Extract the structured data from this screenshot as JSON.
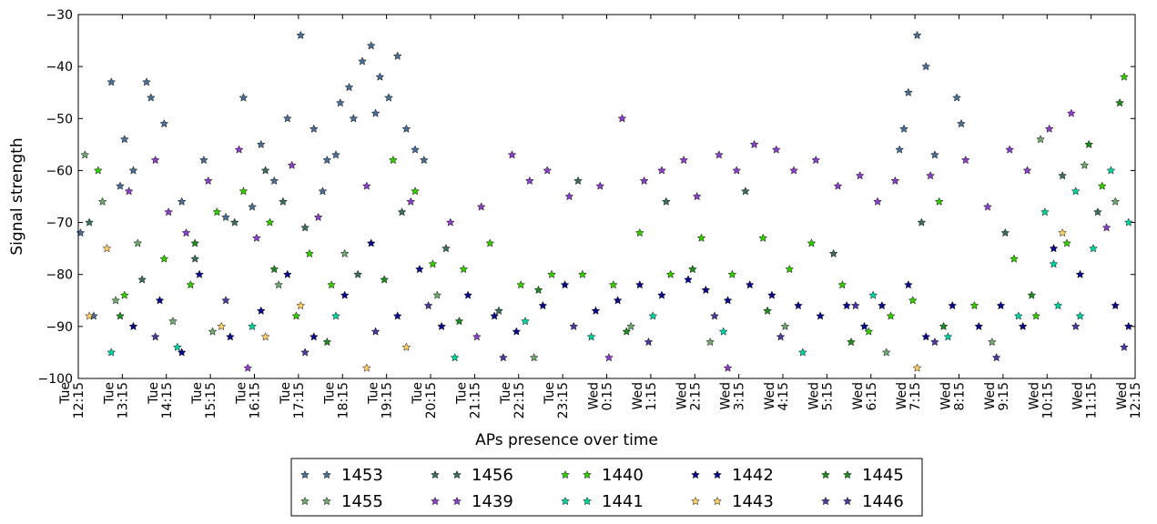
{
  "chart_data": {
    "type": "scatter",
    "xlabel": "APs presence over time",
    "ylabel": "Signal strength",
    "ylim": [
      -100,
      -30
    ],
    "yticks": [
      "−30",
      "−40",
      "−50",
      "−60",
      "−70",
      "−80",
      "−90",
      "−100"
    ],
    "ytick_values": [
      -30,
      -40,
      -50,
      -60,
      -70,
      -80,
      -90,
      -100
    ],
    "xlim": [
      12.25,
      36.25
    ],
    "xticks": [
      {
        "day": "Tue",
        "time": "12:15",
        "hour": 12.25
      },
      {
        "day": "Tue",
        "time": "13:15",
        "hour": 13.25
      },
      {
        "day": "Tue",
        "time": "14:15",
        "hour": 14.25
      },
      {
        "day": "Tue",
        "time": "15:15",
        "hour": 15.25
      },
      {
        "day": "Tue",
        "time": "16:15",
        "hour": 16.25
      },
      {
        "day": "Tue",
        "time": "17:15",
        "hour": 17.25
      },
      {
        "day": "Tue",
        "time": "18:15",
        "hour": 18.25
      },
      {
        "day": "Tue",
        "time": "19:15",
        "hour": 19.25
      },
      {
        "day": "Tue",
        "time": "20:15",
        "hour": 20.25
      },
      {
        "day": "Tue",
        "time": "21:15",
        "hour": 21.25
      },
      {
        "day": "Tue",
        "time": "22:15",
        "hour": 22.25
      },
      {
        "day": "Tue",
        "time": "23:15",
        "hour": 23.25
      },
      {
        "day": "Wed",
        "time": "0:15",
        "hour": 24.25
      },
      {
        "day": "Wed",
        "time": "1:15",
        "hour": 25.25
      },
      {
        "day": "Wed",
        "time": "2:15",
        "hour": 26.25
      },
      {
        "day": "Wed",
        "time": "3:15",
        "hour": 27.25
      },
      {
        "day": "Wed",
        "time": "4:15",
        "hour": 28.25
      },
      {
        "day": "Wed",
        "time": "5:15",
        "hour": 29.25
      },
      {
        "day": "Wed",
        "time": "6:15",
        "hour": 30.25
      },
      {
        "day": "Wed",
        "time": "7:15",
        "hour": 31.25
      },
      {
        "day": "Wed",
        "time": "8:15",
        "hour": 32.25
      },
      {
        "day": "Wed",
        "time": "9:15",
        "hour": 33.25
      },
      {
        "day": "Wed",
        "time": "10:15",
        "hour": 34.25
      },
      {
        "day": "Wed",
        "time": "11:15",
        "hour": 35.25
      },
      {
        "day": "Wed",
        "time": "12:15",
        "hour": 36.25
      }
    ],
    "marker": "star",
    "legend_position": "below",
    "series": [
      {
        "name": "1453",
        "color": "#4a6e96",
        "points": [
          [
            12.3,
            -72
          ],
          [
            12.6,
            -88
          ],
          [
            13.0,
            -43
          ],
          [
            13.3,
            -54
          ],
          [
            13.5,
            -60
          ],
          [
            13.9,
            -46
          ],
          [
            14.2,
            -51
          ],
          [
            14.6,
            -66
          ],
          [
            15.1,
            -58
          ],
          [
            15.6,
            -69
          ],
          [
            16.0,
            -46
          ],
          [
            16.4,
            -55
          ],
          [
            16.7,
            -62
          ],
          [
            17.0,
            -50
          ],
          [
            17.3,
            -34
          ],
          [
            17.6,
            -52
          ],
          [
            17.9,
            -58
          ],
          [
            18.2,
            -47
          ],
          [
            18.4,
            -44
          ],
          [
            18.7,
            -39
          ],
          [
            18.9,
            -36
          ],
          [
            19.1,
            -42
          ],
          [
            19.3,
            -46
          ],
          [
            19.5,
            -38
          ],
          [
            19.7,
            -52
          ],
          [
            19.9,
            -56
          ],
          [
            20.1,
            -58
          ],
          [
            16.2,
            -67
          ],
          [
            17.8,
            -64
          ],
          [
            18.5,
            -50
          ],
          [
            19.0,
            -49
          ],
          [
            31.1,
            -45
          ],
          [
            31.3,
            -34
          ],
          [
            31.5,
            -40
          ],
          [
            31.0,
            -52
          ],
          [
            30.9,
            -56
          ],
          [
            31.7,
            -57
          ],
          [
            32.2,
            -46
          ],
          [
            32.3,
            -51
          ],
          [
            13.8,
            -43
          ],
          [
            13.2,
            -63
          ],
          [
            18.1,
            -57
          ]
        ]
      },
      {
        "name": "1455",
        "color": "#6fa86f",
        "points": [
          [
            12.4,
            -57
          ],
          [
            12.8,
            -66
          ],
          [
            13.1,
            -85
          ],
          [
            13.6,
            -74
          ],
          [
            14.4,
            -89
          ],
          [
            15.3,
            -91
          ],
          [
            16.8,
            -82
          ],
          [
            18.3,
            -76
          ],
          [
            20.4,
            -84
          ],
          [
            22.6,
            -96
          ],
          [
            24.8,
            -90
          ],
          [
            26.6,
            -93
          ],
          [
            28.3,
            -90
          ],
          [
            30.6,
            -95
          ],
          [
            33.0,
            -93
          ],
          [
            34.1,
            -54
          ],
          [
            35.1,
            -59
          ],
          [
            35.8,
            -66
          ]
        ]
      },
      {
        "name": "1456",
        "color": "#3c6e5a",
        "points": [
          [
            12.5,
            -70
          ],
          [
            13.7,
            -81
          ],
          [
            14.9,
            -77
          ],
          [
            15.8,
            -70
          ],
          [
            16.5,
            -60
          ],
          [
            16.9,
            -66
          ],
          [
            17.4,
            -71
          ],
          [
            18.6,
            -80
          ],
          [
            19.6,
            -68
          ],
          [
            20.6,
            -75
          ],
          [
            21.8,
            -87
          ],
          [
            23.6,
            -62
          ],
          [
            25.6,
            -66
          ],
          [
            27.4,
            -64
          ],
          [
            29.4,
            -76
          ],
          [
            31.4,
            -70
          ],
          [
            33.3,
            -72
          ],
          [
            34.6,
            -61
          ],
          [
            35.4,
            -68
          ]
        ]
      },
      {
        "name": "1439",
        "color": "#8a3fc8",
        "points": [
          [
            13.4,
            -64
          ],
          [
            14.0,
            -58
          ],
          [
            14.3,
            -68
          ],
          [
            14.7,
            -72
          ],
          [
            15.2,
            -62
          ],
          [
            15.9,
            -56
          ],
          [
            16.3,
            -73
          ],
          [
            17.1,
            -59
          ],
          [
            17.7,
            -69
          ],
          [
            18.8,
            -63
          ],
          [
            19.8,
            -66
          ],
          [
            20.7,
            -70
          ],
          [
            21.4,
            -67
          ],
          [
            22.1,
            -57
          ],
          [
            22.5,
            -62
          ],
          [
            22.9,
            -60
          ],
          [
            23.4,
            -65
          ],
          [
            24.1,
            -63
          ],
          [
            24.6,
            -50
          ],
          [
            25.1,
            -62
          ],
          [
            25.5,
            -60
          ],
          [
            26.0,
            -58
          ],
          [
            26.3,
            -65
          ],
          [
            26.8,
            -57
          ],
          [
            27.2,
            -60
          ],
          [
            27.6,
            -55
          ],
          [
            28.1,
            -56
          ],
          [
            28.5,
            -60
          ],
          [
            29.0,
            -58
          ],
          [
            29.5,
            -63
          ],
          [
            30.0,
            -61
          ],
          [
            30.4,
            -66
          ],
          [
            30.8,
            -62
          ],
          [
            31.6,
            -61
          ],
          [
            32.4,
            -58
          ],
          [
            32.9,
            -67
          ],
          [
            33.4,
            -56
          ],
          [
            33.8,
            -60
          ],
          [
            34.3,
            -52
          ],
          [
            34.8,
            -49
          ],
          [
            35.6,
            -71
          ],
          [
            21.3,
            -92
          ],
          [
            24.3,
            -96
          ],
          [
            27.0,
            -98
          ],
          [
            16.1,
            -98
          ]
        ]
      },
      {
        "name": "1440",
        "color": "#33cc00",
        "points": [
          [
            12.7,
            -60
          ],
          [
            13.3,
            -84
          ],
          [
            14.2,
            -77
          ],
          [
            14.8,
            -82
          ],
          [
            15.4,
            -68
          ],
          [
            16.0,
            -64
          ],
          [
            16.6,
            -70
          ],
          [
            17.2,
            -88
          ],
          [
            17.5,
            -76
          ],
          [
            18.0,
            -82
          ],
          [
            19.4,
            -58
          ],
          [
            19.9,
            -64
          ],
          [
            20.3,
            -78
          ],
          [
            21.0,
            -79
          ],
          [
            21.6,
            -74
          ],
          [
            22.3,
            -82
          ],
          [
            23.0,
            -80
          ],
          [
            23.7,
            -80
          ],
          [
            24.4,
            -82
          ],
          [
            25.0,
            -72
          ],
          [
            25.7,
            -80
          ],
          [
            26.4,
            -73
          ],
          [
            27.1,
            -80
          ],
          [
            27.8,
            -73
          ],
          [
            28.4,
            -79
          ],
          [
            28.9,
            -74
          ],
          [
            29.6,
            -82
          ],
          [
            30.2,
            -91
          ],
          [
            30.7,
            -88
          ],
          [
            31.2,
            -85
          ],
          [
            31.8,
            -66
          ],
          [
            32.6,
            -86
          ],
          [
            33.5,
            -77
          ],
          [
            34.0,
            -88
          ],
          [
            34.7,
            -74
          ],
          [
            35.5,
            -63
          ],
          [
            36.0,
            -42
          ]
        ]
      },
      {
        "name": "1441",
        "color": "#00d2a0",
        "points": [
          [
            13.0,
            -95
          ],
          [
            14.5,
            -94
          ],
          [
            16.2,
            -90
          ],
          [
            18.1,
            -88
          ],
          [
            20.8,
            -96
          ],
          [
            22.4,
            -89
          ],
          [
            23.9,
            -92
          ],
          [
            25.3,
            -88
          ],
          [
            26.9,
            -91
          ],
          [
            28.7,
            -95
          ],
          [
            30.3,
            -84
          ],
          [
            32.0,
            -92
          ],
          [
            33.6,
            -88
          ],
          [
            34.2,
            -68
          ],
          [
            34.4,
            -78
          ],
          [
            34.9,
            -64
          ],
          [
            35.3,
            -75
          ],
          [
            35.7,
            -60
          ],
          [
            36.1,
            -70
          ],
          [
            34.5,
            -86
          ],
          [
            35.0,
            -88
          ]
        ]
      },
      {
        "name": "1442",
        "color": "#0a0a8c",
        "points": [
          [
            13.5,
            -90
          ],
          [
            14.1,
            -85
          ],
          [
            14.6,
            -95
          ],
          [
            15.0,
            -80
          ],
          [
            15.7,
            -92
          ],
          [
            16.4,
            -87
          ],
          [
            17.0,
            -80
          ],
          [
            17.6,
            -92
          ],
          [
            18.3,
            -84
          ],
          [
            18.9,
            -74
          ],
          [
            19.5,
            -88
          ],
          [
            20.0,
            -79
          ],
          [
            20.5,
            -90
          ],
          [
            21.1,
            -84
          ],
          [
            21.7,
            -88
          ],
          [
            22.2,
            -91
          ],
          [
            22.8,
            -86
          ],
          [
            23.3,
            -82
          ],
          [
            24.0,
            -87
          ],
          [
            24.5,
            -85
          ],
          [
            25.0,
            -82
          ],
          [
            25.5,
            -84
          ],
          [
            26.1,
            -81
          ],
          [
            26.5,
            -83
          ],
          [
            27.0,
            -85
          ],
          [
            27.5,
            -82
          ],
          [
            28.0,
            -84
          ],
          [
            28.6,
            -86
          ],
          [
            29.1,
            -88
          ],
          [
            29.7,
            -86
          ],
          [
            30.1,
            -90
          ],
          [
            30.5,
            -86
          ],
          [
            31.1,
            -82
          ],
          [
            31.5,
            -92
          ],
          [
            32.1,
            -86
          ],
          [
            32.7,
            -90
          ],
          [
            33.2,
            -86
          ],
          [
            33.7,
            -90
          ],
          [
            34.4,
            -75
          ],
          [
            35.0,
            -80
          ],
          [
            35.8,
            -86
          ],
          [
            36.1,
            -90
          ]
        ]
      },
      {
        "name": "1443",
        "color": "#ffcc66",
        "points": [
          [
            12.5,
            -88
          ],
          [
            15.5,
            -90
          ],
          [
            16.5,
            -92
          ],
          [
            17.3,
            -86
          ],
          [
            18.8,
            -98
          ],
          [
            19.7,
            -94
          ],
          [
            31.3,
            -98
          ],
          [
            34.6,
            -72
          ],
          [
            12.9,
            -75
          ]
        ]
      },
      {
        "name": "1445",
        "color": "#1e8c1e",
        "points": [
          [
            13.2,
            -88
          ],
          [
            14.9,
            -74
          ],
          [
            16.7,
            -79
          ],
          [
            17.9,
            -93
          ],
          [
            19.2,
            -81
          ],
          [
            20.9,
            -89
          ],
          [
            22.7,
            -83
          ],
          [
            24.7,
            -91
          ],
          [
            26.2,
            -79
          ],
          [
            27.9,
            -87
          ],
          [
            29.8,
            -93
          ],
          [
            31.9,
            -90
          ],
          [
            33.9,
            -84
          ],
          [
            35.2,
            -55
          ],
          [
            35.9,
            -47
          ]
        ]
      },
      {
        "name": "1446",
        "color": "#4a3aa0",
        "points": [
          [
            14.0,
            -92
          ],
          [
            15.6,
            -85
          ],
          [
            17.4,
            -95
          ],
          [
            19.0,
            -91
          ],
          [
            20.2,
            -86
          ],
          [
            21.9,
            -96
          ],
          [
            23.5,
            -90
          ],
          [
            25.2,
            -93
          ],
          [
            26.7,
            -88
          ],
          [
            28.2,
            -92
          ],
          [
            29.9,
            -86
          ],
          [
            31.7,
            -93
          ],
          [
            33.1,
            -96
          ],
          [
            34.9,
            -90
          ],
          [
            36.0,
            -94
          ]
        ]
      }
    ]
  }
}
